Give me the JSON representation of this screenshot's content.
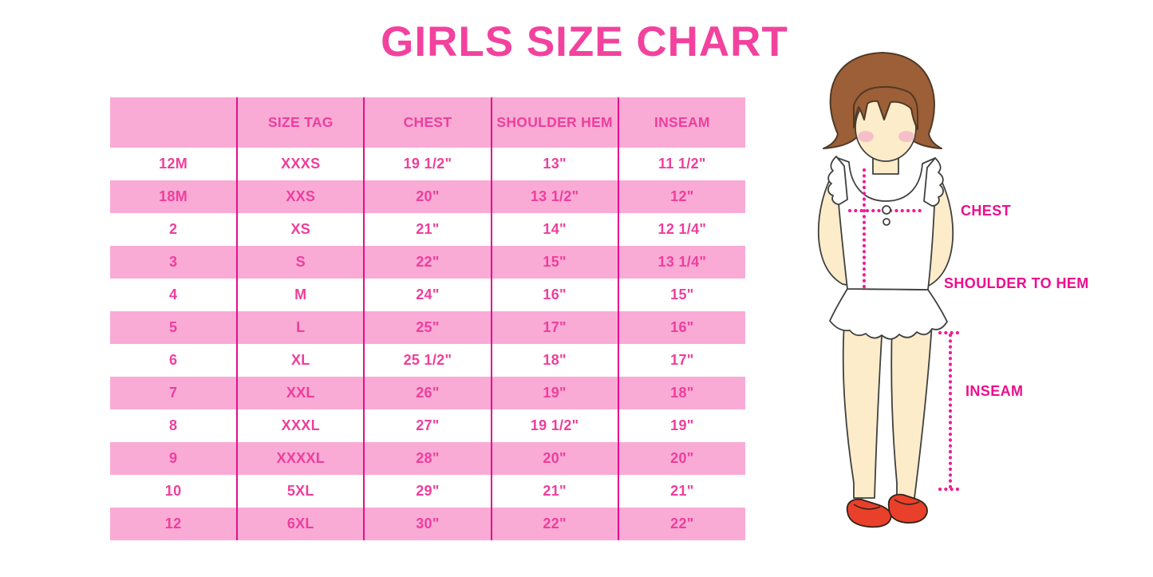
{
  "colors": {
    "title_pink": "#f2429e",
    "cell_text_pink": "#ee3e9c",
    "stripe_pink": "#f9abd6",
    "grid_magenta": "#e60e8a",
    "label_magenta": "#ee0d8e",
    "dot_pink": "#ef1d97",
    "hair_brown": "#9d5f37",
    "hair_outline": "#4f3a26",
    "skin": "#fcecca",
    "outline_dark": "#404040",
    "blush_pink": "#f5bfc9",
    "shoe_red": "#e8402a"
  },
  "chart_data": {
    "type": "table",
    "title": "GIRLS SIZE CHART",
    "columns": [
      "",
      "SIZE TAG",
      "CHEST",
      "SHOULDER HEM",
      "INSEAM"
    ],
    "rows": [
      [
        "12M",
        "XXXS",
        "19 1/2\"",
        "13\"",
        "11 1/2\""
      ],
      [
        "18M",
        "XXS",
        "20\"",
        "13 1/2\"",
        "12\""
      ],
      [
        "2",
        "XS",
        "21\"",
        "14\"",
        "12 1/4\""
      ],
      [
        "3",
        "S",
        "22\"",
        "15\"",
        "13 1/4\""
      ],
      [
        "4",
        "M",
        "24\"",
        "16\"",
        "15\""
      ],
      [
        "5",
        "L",
        "25\"",
        "17\"",
        "16\""
      ],
      [
        "6",
        "XL",
        "25 1/2\"",
        "18\"",
        "17\""
      ],
      [
        "7",
        "XXL",
        "26\"",
        "19\"",
        "18\""
      ],
      [
        "8",
        "XXXL",
        "27\"",
        "19 1/2\"",
        "19\""
      ],
      [
        "9",
        "XXXXL",
        "28\"",
        "20\"",
        "20\""
      ],
      [
        "10",
        "5XL",
        "29\"",
        "21\"",
        "21\""
      ],
      [
        "12",
        "6XL",
        "30\"",
        "22\"",
        "22\""
      ]
    ],
    "grid": "vertical-lines-only",
    "legend_position": "none",
    "row_striping": "white and pink alternating, header pink"
  },
  "figure": {
    "labels": {
      "chest": "CHEST",
      "shoulder_to_hem": "SHOULDER TO HEM",
      "inseam": "INSEAM"
    }
  }
}
